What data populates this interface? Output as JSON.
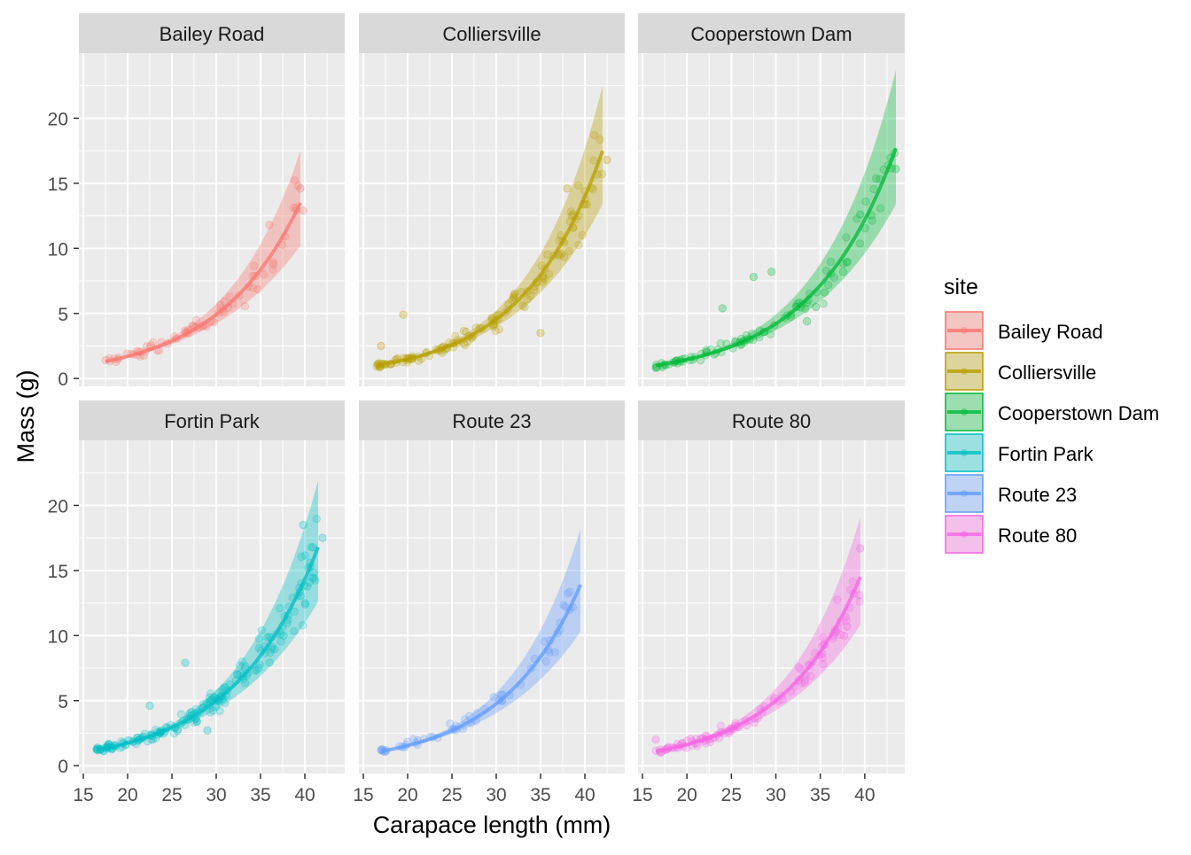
{
  "chart_data": {
    "type": "scatter",
    "xlabel": "Carapace length (mm)",
    "ylabel": "Mass (g)",
    "xlim": [
      14.5,
      44.5
    ],
    "ylim": [
      -0.6,
      25
    ],
    "x_ticks": [
      15,
      20,
      25,
      30,
      35,
      40
    ],
    "y_ticks": [
      0,
      5,
      10,
      15,
      20
    ],
    "grid": true,
    "legend_title": "site",
    "legend_position": "right",
    "facets": [
      {
        "name": "Bailey Road",
        "color": "#F8766D",
        "x_range": [
          17.5,
          39.5
        ],
        "y_range": [
          1.3,
          13.5
        ],
        "ribbon_at_max": [
          10.2,
          17.5
        ],
        "points_n": 70,
        "extra_points": [
          [
            39.5,
            14.6
          ],
          [
            39.8,
            12.9
          ],
          [
            36,
            11.8
          ]
        ]
      },
      {
        "name": "Colliersville",
        "color": "#B79F00",
        "x_range": [
          16.5,
          42
        ],
        "y_range": [
          1.0,
          17.5
        ],
        "ribbon_at_max": [
          13.4,
          22.5
        ],
        "points_n": 140,
        "extra_points": [
          [
            19.5,
            4.9
          ],
          [
            35,
            3.5
          ],
          [
            17,
            2.5
          ],
          [
            42.5,
            16.8
          ],
          [
            38,
            14.6
          ]
        ]
      },
      {
        "name": "Cooperstown Dam",
        "color": "#00BA38",
        "x_range": [
          16.5,
          43.5
        ],
        "y_range": [
          1.0,
          17.7
        ],
        "ribbon_at_max": [
          13.4,
          23.7
        ],
        "points_n": 100,
        "extra_points": [
          [
            43.5,
            16.1
          ],
          [
            39.5,
            12.6
          ],
          [
            33.5,
            4.4
          ],
          [
            34.5,
            5.5
          ],
          [
            29.5,
            8.2
          ],
          [
            27.5,
            7.8
          ],
          [
            24,
            5.4
          ]
        ]
      },
      {
        "name": "Fortin Park",
        "color": "#00BFC4",
        "x_range": [
          16.5,
          41.5
        ],
        "y_range": [
          1.2,
          16.8
        ],
        "ribbon_at_max": [
          12.6,
          21.9
        ],
        "points_n": 200,
        "extra_points": [
          [
            29,
            2.7
          ],
          [
            42,
            17.5
          ],
          [
            39.8,
            18.5
          ],
          [
            26.5,
            7.9
          ],
          [
            22.5,
            4.6
          ]
        ]
      },
      {
        "name": "Route 23",
        "color": "#619CFF",
        "x_range": [
          17,
          39.5
        ],
        "y_range": [
          1.1,
          13.9
        ],
        "ribbon_at_max": [
          10.3,
          18.2
        ],
        "points_n": 55,
        "extra_points": [
          [
            17,
            1.2
          ],
          [
            36,
            8.7
          ]
        ]
      },
      {
        "name": "Route 80",
        "color": "#F564E3",
        "x_range": [
          16.5,
          39.5
        ],
        "y_range": [
          1.1,
          14.5
        ],
        "ribbon_at_max": [
          10.8,
          19.1
        ],
        "points_n": 110,
        "extra_points": [
          [
            16.5,
            2.0
          ],
          [
            39.5,
            16.7
          ],
          [
            38,
            10.7
          ]
        ]
      }
    ]
  }
}
